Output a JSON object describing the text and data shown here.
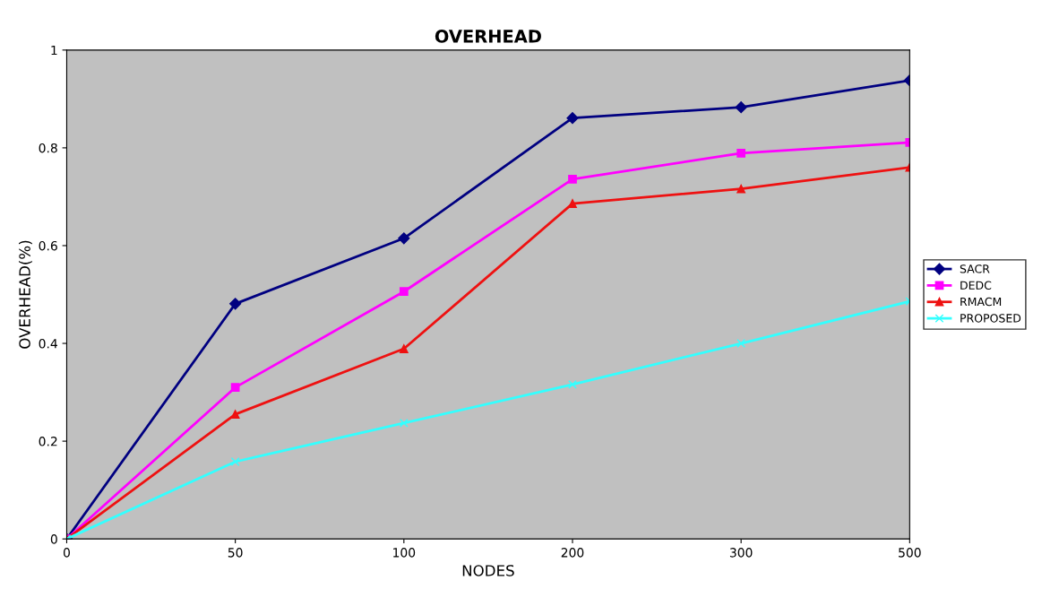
{
  "chart_data": {
    "type": "line",
    "title": "OVERHEAD",
    "xlabel": "NODES",
    "ylabel": "OVERHEAD(%)",
    "categories": [
      "0",
      "50",
      "100",
      "200",
      "300",
      "500"
    ],
    "series": [
      {
        "name": "SACR",
        "color": "#000080",
        "marker": "diamond",
        "values": [
          0,
          0.481,
          0.615,
          0.861,
          0.883,
          0.938
        ]
      },
      {
        "name": "DEDC",
        "color": "#ff00ff",
        "marker": "square",
        "values": [
          0,
          0.31,
          0.506,
          0.736,
          0.789,
          0.811
        ]
      },
      {
        "name": "RMACM",
        "color": "#ee1111",
        "marker": "triangle",
        "values": [
          0,
          0.255,
          0.389,
          0.686,
          0.716,
          0.76
        ]
      },
      {
        "name": "PROPOSED",
        "color": "#33ffff",
        "marker": "cross",
        "values": [
          0,
          0.158,
          0.237,
          0.316,
          0.4,
          0.486
        ]
      }
    ],
    "ylim": [
      0,
      1
    ],
    "yticks": [
      0,
      0.2,
      0.4,
      0.6,
      0.8,
      1
    ],
    "grid": false,
    "legend": "right"
  }
}
